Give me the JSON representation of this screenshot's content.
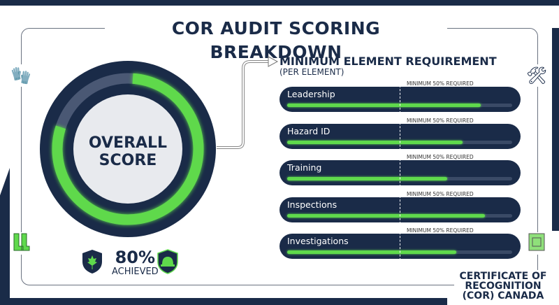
{
  "title": "COR AUDIT SCORING BREAKDOWN",
  "overall": {
    "label_line1": "OVERALL",
    "label_line2": "SCORE",
    "score_percent": 80,
    "score_text": "80%",
    "achieved_label": "ACHIEVED"
  },
  "requirements": {
    "title": "MINIMUM ELEMENT REQUIREMENT",
    "subtitle": "(PER ELEMENT)",
    "minimum_threshold_percent": 50,
    "elements": [
      {
        "name": "Leadership",
        "min_label": "MINIMUM 50% REQUIRED",
        "score_fraction": 0.86
      },
      {
        "name": "Hazard ID",
        "min_label": "MINIMUM 50% REQUIRED",
        "score_fraction": 0.78
      },
      {
        "name": "Training",
        "min_label": "MINIMUM 50% REQUIRED",
        "score_fraction": 0.71
      },
      {
        "name": "Inspections",
        "min_label": "MINIMUM 50% REQUIRED",
        "score_fraction": 0.88
      },
      {
        "name": "Investigations",
        "min_label": "MINIMUM 50% REQUIRED",
        "score_fraction": 0.75
      }
    ]
  },
  "footer": {
    "line1": "CERTIFICATE OF",
    "line2": "RECOGNITION",
    "line3": "(COR) CANADA"
  },
  "icons": [
    "gloves-icon",
    "tools-icon",
    "boots-icon",
    "blueprint-icon",
    "maple-leaf-shield-icon",
    "hard-hat-shield-icon"
  ],
  "colors": {
    "navy": "#1a2b48",
    "green": "#5fd94c"
  }
}
